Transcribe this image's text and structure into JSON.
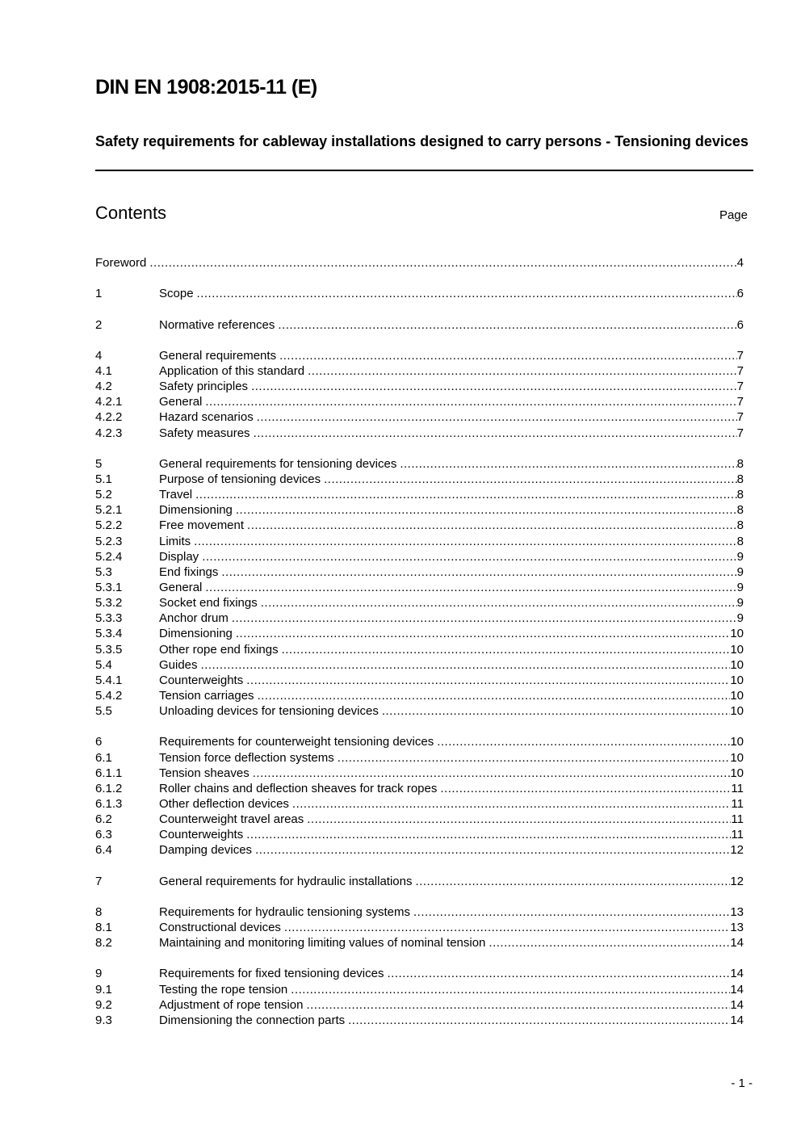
{
  "header": {
    "doc_id": "DIN EN 1908:2015-11 (E)",
    "subtitle": "Safety requirements for cableway installations designed to carry persons - Tensioning devices"
  },
  "contents_heading": "Contents",
  "page_column_label": "Page",
  "toc": [
    {
      "num": "",
      "title": "Foreword",
      "page": "4",
      "group_start": true
    },
    {
      "num": "1",
      "title": "Scope",
      "page": "6",
      "group_start": true
    },
    {
      "num": "2",
      "title": "Normative references",
      "page": "6",
      "group_start": true
    },
    {
      "num": "4",
      "title": "General requirements",
      "page": "7",
      "group_start": true
    },
    {
      "num": "4.1",
      "title": "Application of this standard",
      "page": "7"
    },
    {
      "num": "4.2",
      "title": "Safety principles",
      "page": "7"
    },
    {
      "num": "4.2.1",
      "title": "General",
      "page": "7"
    },
    {
      "num": "4.2.2",
      "title": "Hazard scenarios",
      "page": "7"
    },
    {
      "num": "4.2.3",
      "title": "Safety measures",
      "page": "7"
    },
    {
      "num": "5",
      "title": "General requirements for tensioning devices",
      "page": "8",
      "group_start": true
    },
    {
      "num": "5.1",
      "title": "Purpose of tensioning devices",
      "page": "8"
    },
    {
      "num": "5.2",
      "title": "Travel",
      "page": "8"
    },
    {
      "num": "5.2.1",
      "title": "Dimensioning",
      "page": "8"
    },
    {
      "num": "5.2.2",
      "title": "Free movement",
      "page": "8"
    },
    {
      "num": "5.2.3",
      "title": "Limits",
      "page": "8"
    },
    {
      "num": "5.2.4",
      "title": "Display",
      "page": "9"
    },
    {
      "num": "5.3",
      "title": "End fixings",
      "page": "9"
    },
    {
      "num": "5.3.1",
      "title": "General",
      "page": "9"
    },
    {
      "num": "5.3.2",
      "title": "Socket end fixings",
      "page": "9"
    },
    {
      "num": "5.3.3",
      "title": "Anchor drum",
      "page": "9"
    },
    {
      "num": "5.3.4",
      "title": "Dimensioning",
      "page": "10"
    },
    {
      "num": "5.3.5",
      "title": "Other rope end fixings",
      "page": "10"
    },
    {
      "num": "5.4",
      "title": "Guides",
      "page": "10"
    },
    {
      "num": "5.4.1",
      "title": "Counterweights",
      "page": "10"
    },
    {
      "num": "5.4.2",
      "title": "Tension carriages",
      "page": "10"
    },
    {
      "num": "5.5",
      "title": "Unloading devices for tensioning devices",
      "page": "10"
    },
    {
      "num": "6",
      "title": "Requirements for counterweight tensioning devices",
      "page": "10",
      "group_start": true
    },
    {
      "num": "6.1",
      "title": "Tension force deflection systems",
      "page": "10"
    },
    {
      "num": "6.1.1",
      "title": "Tension sheaves",
      "page": "10"
    },
    {
      "num": "6.1.2",
      "title": "Roller chains and deflection sheaves for track ropes",
      "page": "11"
    },
    {
      "num": "6.1.3",
      "title": "Other deflection devices",
      "page": "11"
    },
    {
      "num": "6.2",
      "title": "Counterweight travel areas",
      "page": "11"
    },
    {
      "num": "6.3",
      "title": "Counterweights",
      "page": "11"
    },
    {
      "num": "6.4",
      "title": "Damping devices",
      "page": "12"
    },
    {
      "num": "7",
      "title": "General requirements for hydraulic installations",
      "page": "12",
      "group_start": true
    },
    {
      "num": "8",
      "title": "Requirements for hydraulic tensioning systems",
      "page": "13",
      "group_start": true
    },
    {
      "num": "8.1",
      "title": "Constructional devices",
      "page": "13"
    },
    {
      "num": "8.2",
      "title": "Maintaining and monitoring limiting values of nominal tension",
      "page": "14"
    },
    {
      "num": "9",
      "title": "Requirements for fixed tensioning devices",
      "page": "14",
      "group_start": true
    },
    {
      "num": "9.1",
      "title": "Testing the rope tension",
      "page": "14"
    },
    {
      "num": "9.2",
      "title": "Adjustment of rope tension",
      "page": "14"
    },
    {
      "num": "9.3",
      "title": "Dimensioning the connection parts",
      "page": "14"
    }
  ],
  "footer": {
    "page_number": "- 1 -"
  }
}
